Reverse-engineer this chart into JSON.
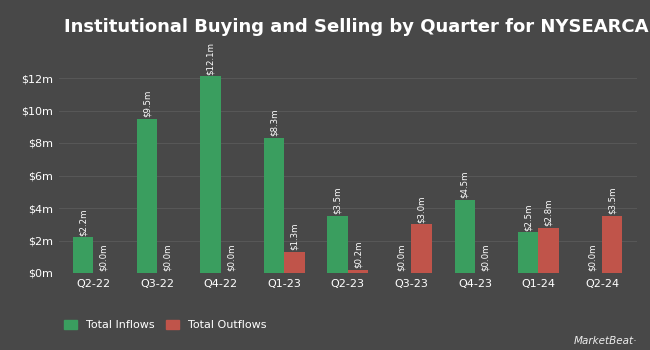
{
  "title": "Institutional Buying and Selling by Quarter for NYSEARCA:BUL",
  "quarters": [
    "Q2-22",
    "Q3-22",
    "Q4-22",
    "Q1-23",
    "Q2-23",
    "Q3-23",
    "Q4-23",
    "Q1-24",
    "Q2-24"
  ],
  "inflows": [
    2.2,
    9.5,
    12.1,
    8.3,
    3.5,
    0.0,
    4.5,
    2.5,
    0.0
  ],
  "outflows": [
    0.0,
    0.0,
    0.0,
    1.3,
    0.2,
    3.0,
    0.0,
    2.8,
    3.5
  ],
  "inflow_labels": [
    "$2.2m",
    "$9.5m",
    "$12.1m",
    "$8.3m",
    "$3.5m",
    "$0.0m",
    "$4.5m",
    "$2.5m",
    "$0.0m"
  ],
  "outflow_labels": [
    "$0.0m",
    "$0.0m",
    "$0.0m",
    "$1.3m",
    "$0.2m",
    "$3.0m",
    "$0.0m",
    "$2.8m",
    "$3.5m"
  ],
  "inflow_color": "#3a9e5f",
  "outflow_color": "#c0544a",
  "bg_color": "#484848",
  "text_color": "#ffffff",
  "grid_color": "#5a5a5a",
  "bar_width": 0.32,
  "ylim": [
    0,
    14.0
  ],
  "yticks": [
    0,
    2,
    4,
    6,
    8,
    10,
    12
  ],
  "ytick_labels": [
    "$0m",
    "$2m",
    "$4m",
    "$6m",
    "$8m",
    "$10m",
    "$12m"
  ],
  "legend_inflow": "Total Inflows",
  "legend_outflow": "Total Outflows",
  "title_fontsize": 13,
  "label_fontsize": 6.2,
  "tick_fontsize": 8,
  "legend_fontsize": 8
}
